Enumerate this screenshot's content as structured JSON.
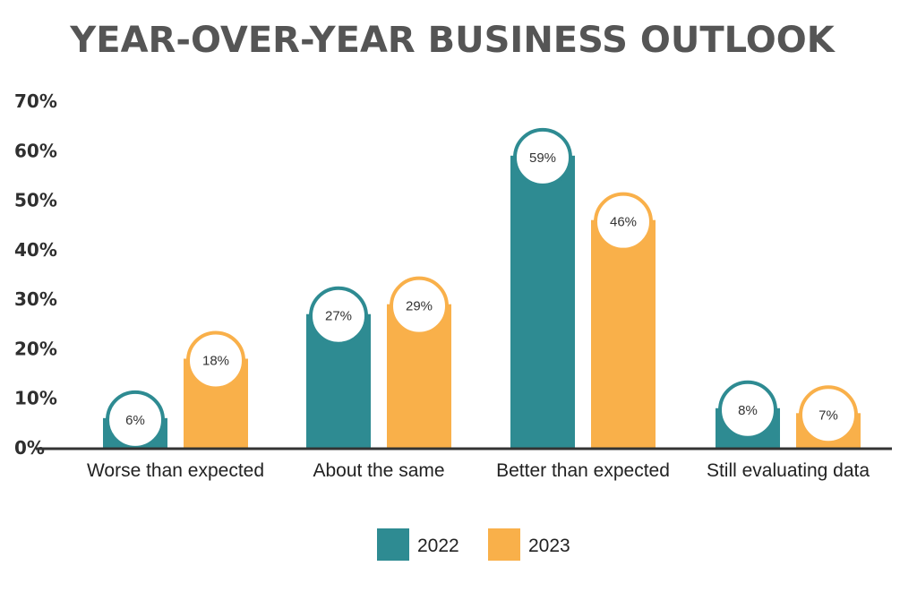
{
  "chart_data": {
    "type": "bar",
    "title": "YEAR-OVER-YEAR BUSINESS OUTLOOK",
    "xlabel": "",
    "ylabel": "",
    "categories": [
      "Worse than expected",
      "About the same",
      "Better than expected",
      "Still evaluating data"
    ],
    "series": [
      {
        "name": "2022",
        "color": "#2e8b92",
        "values": [
          6,
          27,
          59,
          8
        ],
        "labels": [
          "6%",
          "27%",
          "59%",
          "8%"
        ]
      },
      {
        "name": "2023",
        "color": "#f9b04a",
        "values": [
          18,
          29,
          46,
          7
        ],
        "labels": [
          "18%",
          "29%",
          "46%",
          "7%"
        ]
      }
    ],
    "ylim": [
      0,
      70
    ],
    "yticks": [
      "0%",
      "10%",
      "20%",
      "30%",
      "40%",
      "50%",
      "60%",
      "70%"
    ],
    "grid": false,
    "legend": "bottom-center"
  }
}
